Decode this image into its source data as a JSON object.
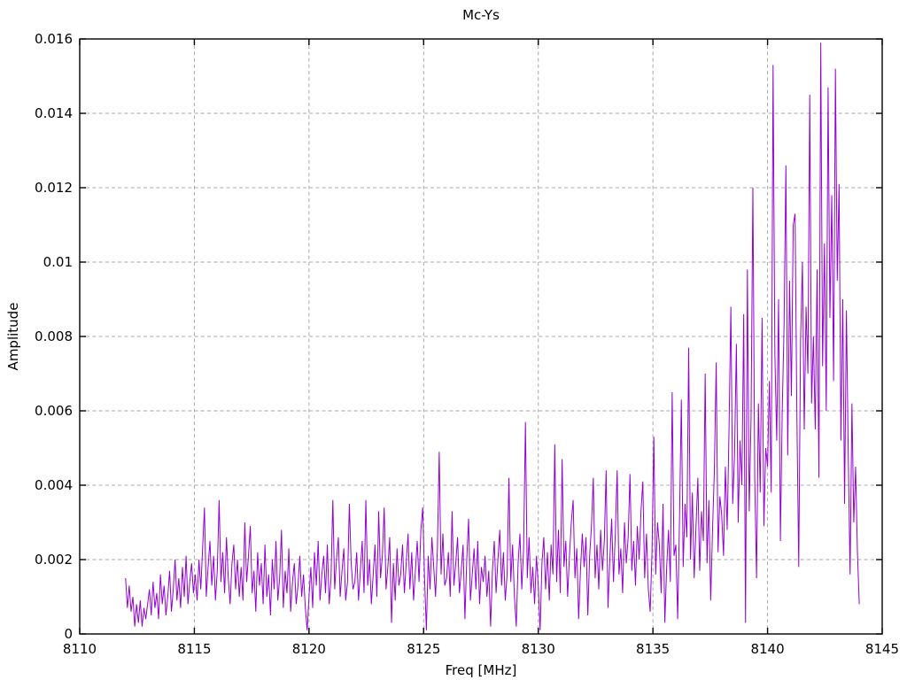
{
  "window": {
    "background": "#ffffff"
  },
  "chart_data": {
    "type": "line",
    "title": "Mc-Ys",
    "xlabel": "Freq [MHz]",
    "ylabel": "Amplitude",
    "xlim": [
      8110,
      8145
    ],
    "ylim": [
      0,
      0.016
    ],
    "xtick_values": [
      8110,
      8115,
      8120,
      8125,
      8130,
      8135,
      8140,
      8145
    ],
    "xtick_labels": [
      "8110",
      "8115",
      "8120",
      "8125",
      "8130",
      "8135",
      "8140",
      "8145"
    ],
    "ytick_values": [
      0,
      0.002,
      0.004,
      0.006,
      0.008,
      0.01,
      0.012,
      0.014,
      0.016
    ],
    "ytick_labels": [
      "0",
      "0.002",
      "0.004",
      "0.006",
      "0.008",
      "0.01",
      "0.012",
      "0.014",
      "0.016"
    ],
    "grid": {
      "show": true,
      "style": "dashed",
      "color": "#a9a9a9"
    },
    "legend": {
      "show": false
    },
    "border_color": "#000000",
    "series": [
      {
        "name": "Mc-Ys",
        "color": "#9400d3",
        "x_start": 8112.0,
        "x_step": 0.08,
        "amplitude_scale": 0.0001,
        "amplitudes": [
          15,
          7,
          13,
          6,
          10,
          2,
          8,
          3,
          9,
          2,
          7,
          4,
          8,
          12,
          5,
          14,
          7,
          11,
          4,
          16,
          8,
          13,
          5,
          10,
          17,
          6,
          12,
          20,
          9,
          15,
          7,
          18,
          10,
          21,
          8,
          14,
          19,
          11,
          16,
          9,
          20,
          12,
          23,
          34,
          10,
          18,
          25,
          13,
          21,
          9,
          17,
          36,
          14,
          22,
          11,
          26,
          15,
          8,
          19,
          24,
          12,
          20,
          10,
          18,
          9,
          30,
          14,
          21,
          29,
          11,
          17,
          6,
          22,
          13,
          19,
          8,
          24,
          10,
          16,
          5,
          20,
          12,
          25,
          9,
          15,
          28,
          7,
          17,
          11,
          23,
          6,
          14,
          19,
          8,
          13,
          21,
          10,
          16,
          7,
          1,
          10,
          18,
          7,
          22,
          13,
          25,
          9,
          16,
          21,
          11,
          24,
          8,
          15,
          36,
          12,
          20,
          26,
          10,
          17,
          23,
          9,
          14,
          35,
          19,
          12,
          14,
          22,
          9,
          17,
          25,
          11,
          36,
          13,
          20,
          8,
          16,
          24,
          10,
          33,
          15,
          21,
          34,
          12,
          18,
          26,
          3,
          19,
          9,
          23,
          13,
          16,
          24,
          11,
          19,
          27,
          12,
          22,
          9,
          17,
          25,
          14,
          28,
          34,
          15,
          1,
          21,
          12,
          26,
          18,
          10,
          23,
          49,
          16,
          27,
          13,
          15,
          22,
          10,
          33,
          13,
          19,
          26,
          11,
          17,
          24,
          4,
          20,
          31,
          9,
          16,
          23,
          12,
          25,
          8,
          18,
          14,
          21,
          10,
          17,
          2,
          17,
          25,
          11,
          20,
          28,
          13,
          22,
          9,
          16,
          42,
          14,
          24,
          10,
          2,
          19,
          27,
          12,
          23,
          57,
          15,
          26,
          11,
          18,
          8,
          21,
          13,
          1,
          19,
          26,
          12,
          22,
          9,
          24,
          16,
          51,
          14,
          28,
          11,
          47,
          18,
          25,
          10,
          21,
          30,
          36,
          15,
          23,
          4,
          17,
          27,
          18,
          26,
          5,
          21,
          29,
          42,
          15,
          24,
          12,
          28,
          17,
          25,
          44,
          7,
          20,
          31,
          14,
          27,
          44,
          16,
          23,
          11,
          30,
          19,
          26,
          43,
          17,
          25,
          13,
          29,
          20,
          33,
          41,
          15,
          27,
          12,
          6,
          22,
          53,
          16,
          30,
          24,
          11,
          35,
          3,
          18,
          28,
          14,
          65,
          21,
          24,
          4,
          31,
          63,
          18,
          35,
          26,
          77,
          20,
          38,
          15,
          29,
          42,
          17,
          33,
          25,
          70,
          19,
          36,
          9,
          28,
          44,
          73,
          22,
          37,
          32,
          21,
          45,
          28,
          55,
          88,
          35,
          48,
          78,
          30,
          52,
          40,
          86,
          3,
          98,
          33,
          58,
          120,
          42,
          15,
          62,
          38,
          85,
          29,
          50,
          45,
          68,
          38,
          153,
          75,
          52,
          90,
          25,
          60,
          83,
          126,
          48,
          95,
          64,
          110,
          113,
          58,
          18,
          79,
          100,
          55,
          88,
          70,
          145,
          62,
          80,
          55,
          98,
          42,
          159,
          72,
          105,
          60,
          147,
          85,
          118,
          68,
          152,
          95,
          121,
          52,
          90,
          35,
          87,
          48,
          16,
          62,
          30,
          45,
          22,
          8
        ]
      }
    ]
  }
}
